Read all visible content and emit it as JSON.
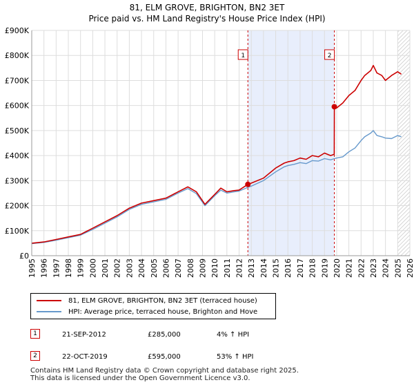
{
  "title_line1": "81, ELM GROVE, BRIGHTON, BN2 3ET",
  "title_line2": "Price paid vs. HM Land Registry's House Price Index (HPI)",
  "legend": {
    "property_label": "81, ELM GROVE, BRIGHTON, BN2 3ET (terraced house)",
    "hpi_label": "HPI: Average price, terraced house, Brighton and Hove"
  },
  "sales": [
    {
      "num": "1",
      "date": "21-SEP-2012",
      "price": "£285,000",
      "hpi_change": "4% ↑ HPI"
    },
    {
      "num": "2",
      "date": "22-OCT-2019",
      "price": "£595,000",
      "hpi_change": "53% ↑ HPI"
    }
  ],
  "footer_line1": "Contains HM Land Registry data © Crown copyright and database right 2025.",
  "footer_line2": "This data is licensed under the Open Government Licence v3.0.",
  "colors": {
    "property": "#cc0000",
    "hpi": "#6699cc",
    "shade": "#e8eefc",
    "grid": "#dddddd"
  },
  "chart_data": {
    "type": "line",
    "title": "81, ELM GROVE, BRIGHTON, BN2 3ET — Price paid vs. HM Land Registry's House Price Index (HPI)",
    "xlabel": "",
    "ylabel": "",
    "xlim": [
      1995,
      2026
    ],
    "ylim": [
      0,
      900000
    ],
    "grid": true,
    "y_ticks": [
      0,
      100000,
      200000,
      300000,
      400000,
      500000,
      600000,
      700000,
      800000,
      900000
    ],
    "y_tick_labels": [
      "£0",
      "£100K",
      "£200K",
      "£300K",
      "£400K",
      "£500K",
      "£600K",
      "£700K",
      "£800K",
      "£900K"
    ],
    "x_ticks": [
      1995,
      1996,
      1997,
      1998,
      1999,
      2000,
      2001,
      2002,
      2003,
      2004,
      2005,
      2006,
      2007,
      2008,
      2009,
      2010,
      2011,
      2012,
      2013,
      2014,
      2015,
      2016,
      2017,
      2018,
      2019,
      2020,
      2021,
      2022,
      2023,
      2024,
      2025,
      2026
    ],
    "x_tick_labels": [
      "1995",
      "1996",
      "1997",
      "1998",
      "1999",
      "2000",
      "2001",
      "2002",
      "2003",
      "2004",
      "2005",
      "2006",
      "2007",
      "2008",
      "2009",
      "2010",
      "2011",
      "2012",
      "2013",
      "2014",
      "2015",
      "2016",
      "2017",
      "2018",
      "2019",
      "2020",
      "2021",
      "2022",
      "2023",
      "2024",
      "2025",
      "2026"
    ],
    "shaded_range": [
      2012.72,
      2019.81
    ],
    "hatched_from": 2025.0,
    "series": [
      {
        "name": "81, ELM GROVE, BRIGHTON, BN2 3ET (terraced house)",
        "color": "#cc0000",
        "x": [
          1995.0,
          1996.0,
          1997.0,
          1998.0,
          1999.0,
          2000.0,
          2001.0,
          2002.0,
          2003.0,
          2004.0,
          2005.0,
          2006.0,
          2007.0,
          2007.8,
          2008.5,
          2009.2,
          2010.0,
          2010.5,
          2011.0,
          2011.6,
          2012.0,
          2012.72,
          2013.0,
          2014.0,
          2015.0,
          2015.7,
          2016.0,
          2016.5,
          2017.0,
          2017.5,
          2018.0,
          2018.5,
          2019.0,
          2019.5,
          2019.8,
          2019.81,
          2020.0,
          2020.5,
          2021.0,
          2021.5,
          2022.0,
          2022.3,
          2022.8,
          2023.0,
          2023.3,
          2023.7,
          2024.0,
          2024.5,
          2025.0,
          2025.3
        ],
        "y": [
          50000,
          55000,
          65000,
          75000,
          85000,
          110000,
          135000,
          160000,
          190000,
          210000,
          220000,
          230000,
          255000,
          275000,
          255000,
          205000,
          245000,
          270000,
          255000,
          260000,
          262000,
          285000,
          290000,
          310000,
          350000,
          370000,
          375000,
          380000,
          390000,
          385000,
          400000,
          395000,
          410000,
          400000,
          405000,
          595000,
          590000,
          610000,
          640000,
          660000,
          700000,
          720000,
          740000,
          760000,
          730000,
          720000,
          700000,
          720000,
          735000,
          725000
        ]
      },
      {
        "name": "HPI: Average price, terraced house, Brighton and Hove",
        "color": "#6699cc",
        "x": [
          1995.0,
          1996.0,
          1997.0,
          1998.0,
          1999.0,
          2000.0,
          2001.0,
          2002.0,
          2003.0,
          2004.0,
          2005.0,
          2006.0,
          2007.0,
          2007.8,
          2008.5,
          2009.2,
          2010.0,
          2010.5,
          2011.0,
          2011.6,
          2012.0,
          2012.72,
          2013.0,
          2014.0,
          2015.0,
          2015.7,
          2016.0,
          2016.5,
          2017.0,
          2017.5,
          2018.0,
          2018.5,
          2019.0,
          2019.5,
          2019.81,
          2020.0,
          2020.5,
          2021.0,
          2021.5,
          2022.0,
          2022.3,
          2022.8,
          2023.0,
          2023.3,
          2023.7,
          2024.0,
          2024.5,
          2025.0,
          2025.3
        ],
        "y": [
          48000,
          53000,
          62000,
          72000,
          82000,
          105000,
          130000,
          155000,
          185000,
          205000,
          215000,
          225000,
          250000,
          268000,
          248000,
          200000,
          240000,
          262000,
          250000,
          255000,
          258000,
          273000,
          278000,
          300000,
          335000,
          355000,
          360000,
          365000,
          372000,
          368000,
          380000,
          378000,
          388000,
          383000,
          388000,
          390000,
          395000,
          415000,
          430000,
          460000,
          475000,
          490000,
          500000,
          480000,
          475000,
          470000,
          468000,
          480000,
          475000
        ]
      }
    ],
    "sales": [
      {
        "num": "1",
        "x": 2012.72,
        "y": 285000
      },
      {
        "num": "2",
        "x": 2019.81,
        "y": 595000
      }
    ]
  }
}
